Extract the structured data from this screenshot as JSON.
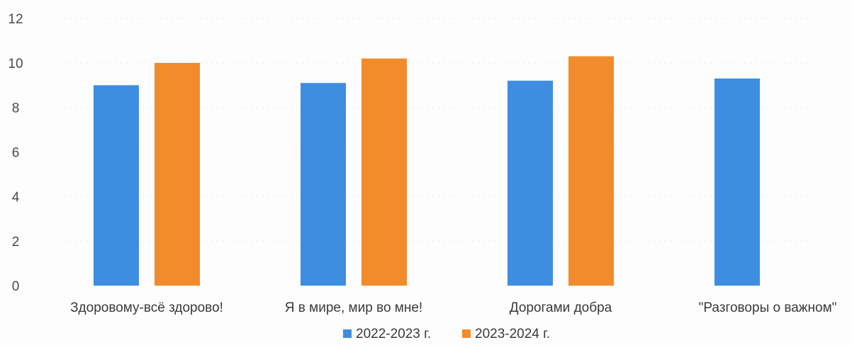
{
  "chart_data": {
    "type": "bar",
    "categories": [
      "Здоровому-всё здорово!",
      "Я в мире, мир во мне!",
      "Дорогами добра",
      "\"Разговоры о важном\""
    ],
    "series": [
      {
        "name": "2022-2023 г.",
        "color": "#3d8ee0",
        "values": [
          9.0,
          9.1,
          9.2,
          9.3
        ]
      },
      {
        "name": "2023-2024 г.",
        "color": "#f28b2c",
        "values": [
          10.0,
          10.2,
          10.3,
          null
        ]
      }
    ],
    "ylim": [
      0,
      12
    ],
    "yticks": [
      0,
      2,
      4,
      6,
      8,
      10,
      12
    ],
    "grid": true,
    "legend_position": "bottom"
  }
}
